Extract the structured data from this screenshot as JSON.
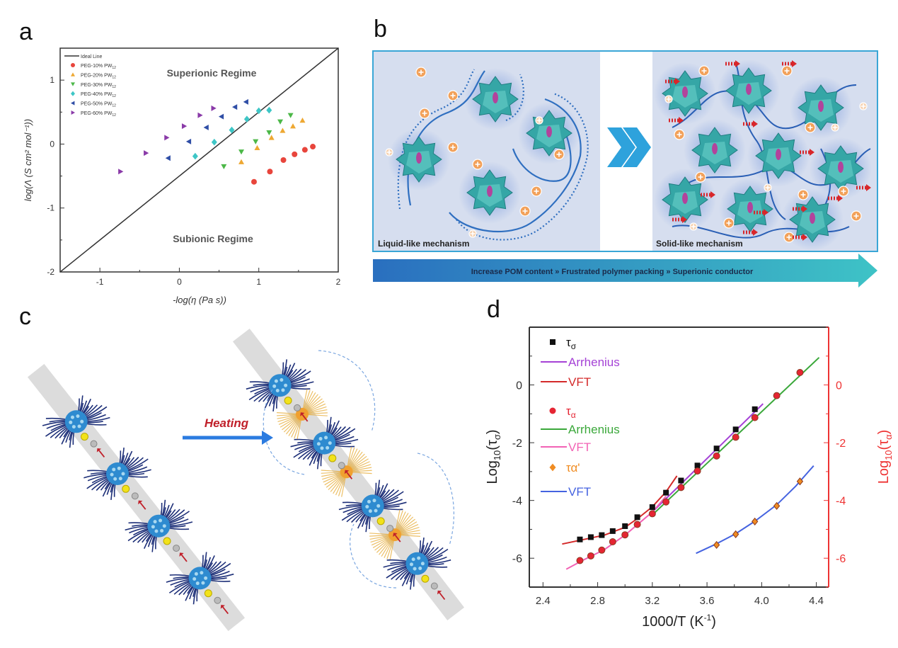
{
  "panel_labels": {
    "a": "a",
    "b": "b",
    "c": "c",
    "d": "d"
  },
  "panel_b": {
    "left_label": "Liquid-like mechanism",
    "right_label": "Solid-like mechanism",
    "banner": "Increase POM content » Frustrated polymer packing » Superionic conductor"
  },
  "panel_c": {
    "arrow_label": "Heating"
  },
  "colors": {
    "teal_cluster": "#35a6a6",
    "ion": "#f2a15a",
    "panel_bg": "#d3dcee",
    "banner_start": "#2a6fbf",
    "banner_end": "#3ec3c6"
  },
  "chart_data": [
    {
      "type": "scatter",
      "xlabel": "-log(η (Pa s))",
      "ylabel": "log(Λ (S cm² mol⁻¹))",
      "xlim": [
        -1.5,
        2
      ],
      "ylim": [
        -2,
        1.5
      ],
      "xticks": [
        -1,
        0,
        1,
        2
      ],
      "yticks": [
        -2,
        -1,
        0,
        1
      ],
      "grid": false,
      "legend": "top-left",
      "annotations": [
        "Superionic Regime",
        "Subionic Regime"
      ],
      "reference_line": {
        "name": "Ideal Line",
        "points": [
          [
            -1.5,
            -2
          ],
          [
            2,
            1.5
          ]
        ]
      },
      "series": [
        {
          "name": "PEG-10% PW",
          "sub": "12",
          "marker": "circle",
          "color": "#e8453c",
          "points": [
            [
              0.94,
              -0.59
            ],
            [
              1.14,
              -0.43
            ],
            [
              1.31,
              -0.25
            ],
            [
              1.45,
              -0.16
            ],
            [
              1.58,
              -0.09
            ],
            [
              1.68,
              -0.04
            ]
          ]
        },
        {
          "name": "PEG-20% PW",
          "sub": "12",
          "marker": "triangle-up",
          "color": "#eea832",
          "points": [
            [
              0.78,
              -0.28
            ],
            [
              0.98,
              -0.06
            ],
            [
              1.16,
              0.1
            ],
            [
              1.3,
              0.21
            ],
            [
              1.43,
              0.28
            ],
            [
              1.55,
              0.37
            ]
          ]
        },
        {
          "name": "PEG-30% PW",
          "sub": "12",
          "marker": "triangle-down",
          "color": "#4cb848",
          "points": [
            [
              0.56,
              -0.35
            ],
            [
              0.78,
              -0.12
            ],
            [
              0.96,
              0.04
            ],
            [
              1.13,
              0.18
            ],
            [
              1.27,
              0.35
            ],
            [
              1.4,
              0.45
            ]
          ]
        },
        {
          "name": "PEG-40% PW",
          "sub": "12",
          "marker": "diamond",
          "color": "#3ec6c6",
          "points": [
            [
              0.2,
              -0.19
            ],
            [
              0.44,
              0.03
            ],
            [
              0.66,
              0.22
            ],
            [
              0.85,
              0.39
            ],
            [
              1.0,
              0.52
            ],
            [
              1.13,
              0.53
            ]
          ]
        },
        {
          "name": "PEG-50% PW",
          "sub": "12",
          "marker": "triangle-left",
          "color": "#2f4ea6",
          "points": [
            [
              -0.14,
              -0.22
            ],
            [
              0.12,
              0.04
            ],
            [
              0.34,
              0.26
            ],
            [
              0.53,
              0.43
            ],
            [
              0.7,
              0.58
            ],
            [
              0.84,
              0.66
            ]
          ]
        },
        {
          "name": "PEG-60% PW",
          "sub": "12",
          "marker": "triangle-right",
          "color": "#8a3aa8",
          "points": [
            [
              -0.74,
              -0.43
            ],
            [
              -0.42,
              -0.14
            ],
            [
              -0.16,
              0.1
            ],
            [
              0.06,
              0.28
            ],
            [
              0.26,
              0.45
            ],
            [
              0.43,
              0.56
            ]
          ]
        }
      ]
    },
    {
      "type": "line",
      "xlabel": "1000/T (K",
      "xlabel_sup": "-1",
      "xlabel_end": ")",
      "ylabel_left": {
        "base": "Log",
        "sub": "10",
        "inner": "(τ",
        "inner_sub": "σ",
        "end": ")"
      },
      "ylabel_right": {
        "base": "Log",
        "sub": "10",
        "inner": "(τ",
        "inner_sub": "α",
        "end": ")"
      },
      "xlim": [
        2.3,
        4.49
      ],
      "ylim": [
        -7,
        2
      ],
      "xticks": [
        2.4,
        2.8,
        3.2,
        3.6,
        4.0,
        4.4
      ],
      "yticks": [
        0,
        -2,
        -4,
        -6
      ],
      "grid": false,
      "legend": "top-left",
      "series": [
        {
          "symbol": "τ",
          "sub": "σ",
          "marker": "square",
          "color": "#111111",
          "axis": "left",
          "points": [
            [
              2.67,
              -5.35
            ],
            [
              2.75,
              -5.27
            ],
            [
              2.83,
              -5.2
            ],
            [
              2.91,
              -5.06
            ],
            [
              3.0,
              -4.89
            ],
            [
              3.09,
              -4.58
            ],
            [
              3.2,
              -4.23
            ],
            [
              3.3,
              -3.73
            ],
            [
              3.41,
              -3.31
            ],
            [
              3.53,
              -2.79
            ],
            [
              3.67,
              -2.2
            ],
            [
              3.81,
              -1.54
            ],
            [
              3.95,
              -0.84
            ]
          ]
        },
        {
          "symbol": "τ",
          "sub": "α",
          "marker": "circle",
          "color": "#e52533",
          "axis": "right",
          "points": [
            [
              2.67,
              -6.08
            ],
            [
              2.75,
              -5.92
            ],
            [
              2.83,
              -5.72
            ],
            [
              2.91,
              -5.43
            ],
            [
              3.0,
              -5.19
            ],
            [
              3.09,
              -4.83
            ],
            [
              3.2,
              -4.46
            ],
            [
              3.3,
              -4.05
            ],
            [
              3.41,
              -3.55
            ],
            [
              3.53,
              -2.98
            ],
            [
              3.67,
              -2.46
            ],
            [
              3.81,
              -1.81
            ],
            [
              3.95,
              -1.13
            ],
            [
              4.11,
              -0.37
            ],
            [
              4.28,
              0.43
            ]
          ]
        },
        {
          "symbol": "τ",
          "sub": "α'",
          "marker": "diamond",
          "color": "#f08c22",
          "axis": "right",
          "points": [
            [
              3.67,
              -5.54
            ],
            [
              3.81,
              -5.17
            ],
            [
              3.95,
              -4.73
            ],
            [
              4.11,
              -4.19
            ],
            [
              4.28,
              -3.34
            ]
          ]
        }
      ],
      "fits": [
        {
          "name": "Arrhenius",
          "of": "τσ",
          "color": "#a542d6",
          "points": [
            [
              3.2,
              -4.4
            ],
            [
              4.01,
              -0.65
            ]
          ]
        },
        {
          "name": "VFT",
          "of": "τσ",
          "color": "#d42a2a",
          "points": [
            [
              2.54,
              -5.51
            ],
            [
              2.7,
              -5.35
            ],
            [
              2.85,
              -5.2
            ],
            [
              3.0,
              -4.93
            ],
            [
              3.1,
              -4.6
            ],
            [
              3.2,
              -4.22
            ],
            [
              3.3,
              -3.7
            ],
            [
              3.38,
              -3.15
            ]
          ]
        },
        {
          "name": "Arrhenius",
          "of": "τα",
          "color": "#3ba83b",
          "points": [
            [
              3.2,
              -4.5
            ],
            [
              4.42,
              0.95
            ]
          ]
        },
        {
          "name": "VFT",
          "of": "τα",
          "color": "#f262b4",
          "points": [
            [
              2.57,
              -6.38
            ],
            [
              2.7,
              -6.05
            ],
            [
              2.85,
              -5.7
            ],
            [
              3.0,
              -5.2
            ],
            [
              3.1,
              -4.8
            ],
            [
              3.2,
              -4.4
            ],
            [
              3.3,
              -3.85
            ]
          ]
        },
        {
          "name": "VFT",
          "of": "τα'",
          "color": "#4563e0",
          "points": [
            [
              3.52,
              -5.83
            ],
            [
              3.67,
              -5.5
            ],
            [
              3.81,
              -5.15
            ],
            [
              3.95,
              -4.72
            ],
            [
              4.11,
              -4.15
            ],
            [
              4.25,
              -3.5
            ],
            [
              4.38,
              -2.8
            ]
          ]
        }
      ],
      "legend_order": [
        {
          "kind": "series",
          "index": 0
        },
        {
          "kind": "fit",
          "index": 0
        },
        {
          "kind": "fit",
          "index": 1
        },
        {
          "kind": "series",
          "index": 1
        },
        {
          "kind": "fit",
          "index": 2
        },
        {
          "kind": "fit",
          "index": 3
        },
        {
          "kind": "series",
          "index": 2
        },
        {
          "kind": "fit",
          "index": 4
        }
      ]
    }
  ]
}
